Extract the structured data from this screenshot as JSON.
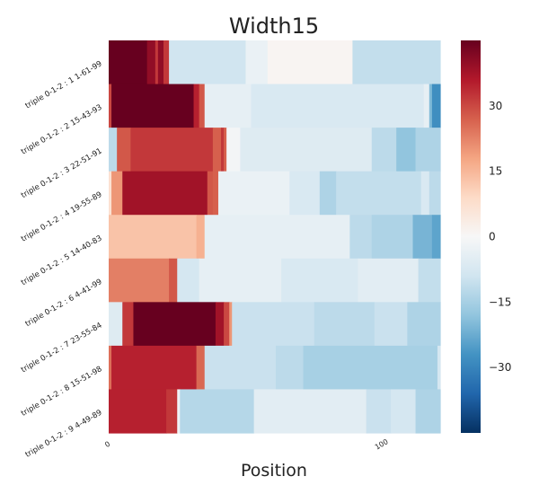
{
  "chart_data": {
    "type": "heatmap",
    "title": "Width15",
    "xlabel": "Position",
    "ylabel": "",
    "xlim": [
      0,
      121
    ],
    "x_ticks": [
      {
        "value": 0,
        "label": "0"
      },
      {
        "value": 100,
        "label": "100"
      }
    ],
    "rows": [
      {
        "label": "triple 0-1-2 : 1 1-61-99",
        "segments": [
          [
            0,
            14,
            45
          ],
          [
            14,
            17,
            40
          ],
          [
            17,
            18,
            32
          ],
          [
            18,
            20,
            40
          ],
          [
            20,
            22,
            32
          ],
          [
            22,
            50,
            -9
          ],
          [
            50,
            58,
            -3
          ],
          [
            58,
            89,
            1
          ],
          [
            89,
            121,
            -11
          ]
        ]
      },
      {
        "label": "triple 0-1-2 : 2 15-43-93",
        "segments": [
          [
            0,
            1,
            30
          ],
          [
            1,
            31,
            45
          ],
          [
            31,
            33,
            35
          ],
          [
            33,
            35,
            28
          ],
          [
            35,
            52,
            -4
          ],
          [
            52,
            115,
            -7
          ],
          [
            115,
            117,
            -4
          ],
          [
            117,
            118,
            -20
          ],
          [
            118,
            121,
            -28
          ]
        ]
      },
      {
        "label": "triple 0-1-2 : 3 22-51-91",
        "segments": [
          [
            0,
            3,
            -12
          ],
          [
            3,
            8,
            28
          ],
          [
            8,
            38,
            32
          ],
          [
            38,
            41,
            27
          ],
          [
            41,
            42,
            32
          ],
          [
            42,
            43,
            27
          ],
          [
            43,
            48,
            -1
          ],
          [
            48,
            96,
            -6
          ],
          [
            96,
            105,
            -12
          ],
          [
            105,
            112,
            -18
          ],
          [
            112,
            121,
            -14
          ]
        ]
      },
      {
        "label": "triple 0-1-2 : 4 19-55-89",
        "segments": [
          [
            0,
            1,
            7
          ],
          [
            1,
            5,
            20
          ],
          [
            5,
            36,
            38
          ],
          [
            36,
            38,
            28
          ],
          [
            38,
            40,
            27
          ],
          [
            40,
            66,
            -3
          ],
          [
            66,
            77,
            -7
          ],
          [
            77,
            83,
            -14
          ],
          [
            83,
            114,
            -11
          ],
          [
            114,
            117,
            -7
          ],
          [
            117,
            121,
            -12
          ]
        ]
      },
      {
        "label": "triple 0-1-2 : 5 14-40-83",
        "segments": [
          [
            0,
            32,
            13
          ],
          [
            32,
            35,
            16
          ],
          [
            35,
            88,
            -4
          ],
          [
            88,
            96,
            -12
          ],
          [
            96,
            111,
            -14
          ],
          [
            111,
            118,
            -21
          ],
          [
            118,
            121,
            -24
          ]
        ]
      },
      {
        "label": "triple 0-1-2 : 6 4-41-99",
        "segments": [
          [
            0,
            22,
            23
          ],
          [
            22,
            25,
            28
          ],
          [
            25,
            33,
            -8
          ],
          [
            33,
            63,
            -4
          ],
          [
            63,
            91,
            -7
          ],
          [
            91,
            113,
            -5
          ],
          [
            113,
            121,
            -11
          ]
        ]
      },
      {
        "label": "triple 0-1-2 : 7 23-55-84",
        "segments": [
          [
            0,
            5,
            -6
          ],
          [
            5,
            9,
            32
          ],
          [
            9,
            39,
            45
          ],
          [
            39,
            42,
            38
          ],
          [
            42,
            44,
            30
          ],
          [
            44,
            45,
            20
          ],
          [
            45,
            75,
            -10
          ],
          [
            75,
            97,
            -12
          ],
          [
            97,
            109,
            -10
          ],
          [
            109,
            121,
            -14
          ]
        ]
      },
      {
        "label": "triple 0-1-2 : 8 15-51-98",
        "segments": [
          [
            0,
            1,
            25
          ],
          [
            1,
            32,
            35
          ],
          [
            32,
            35,
            26
          ],
          [
            35,
            61,
            -10
          ],
          [
            61,
            71,
            -12
          ],
          [
            71,
            120,
            -15
          ],
          [
            120,
            121,
            -8
          ]
        ]
      },
      {
        "label": "triple 0-1-2 : 9 4-49-89",
        "segments": [
          [
            0,
            21,
            35
          ],
          [
            21,
            25,
            32
          ],
          [
            25,
            26,
            -2
          ],
          [
            26,
            53,
            -13
          ],
          [
            53,
            94,
            -5
          ],
          [
            94,
            103,
            -10
          ],
          [
            103,
            112,
            -8
          ],
          [
            112,
            121,
            -14
          ]
        ]
      }
    ],
    "colorbar": {
      "vmin": -45,
      "vmax": 45,
      "ticks": [
        30,
        15,
        0,
        -15,
        -30
      ],
      "tick_labels": [
        "30",
        "15",
        "0",
        "−15",
        "−30"
      ],
      "colormap": "RdBu_r"
    },
    "grid": false,
    "legend": "none"
  }
}
